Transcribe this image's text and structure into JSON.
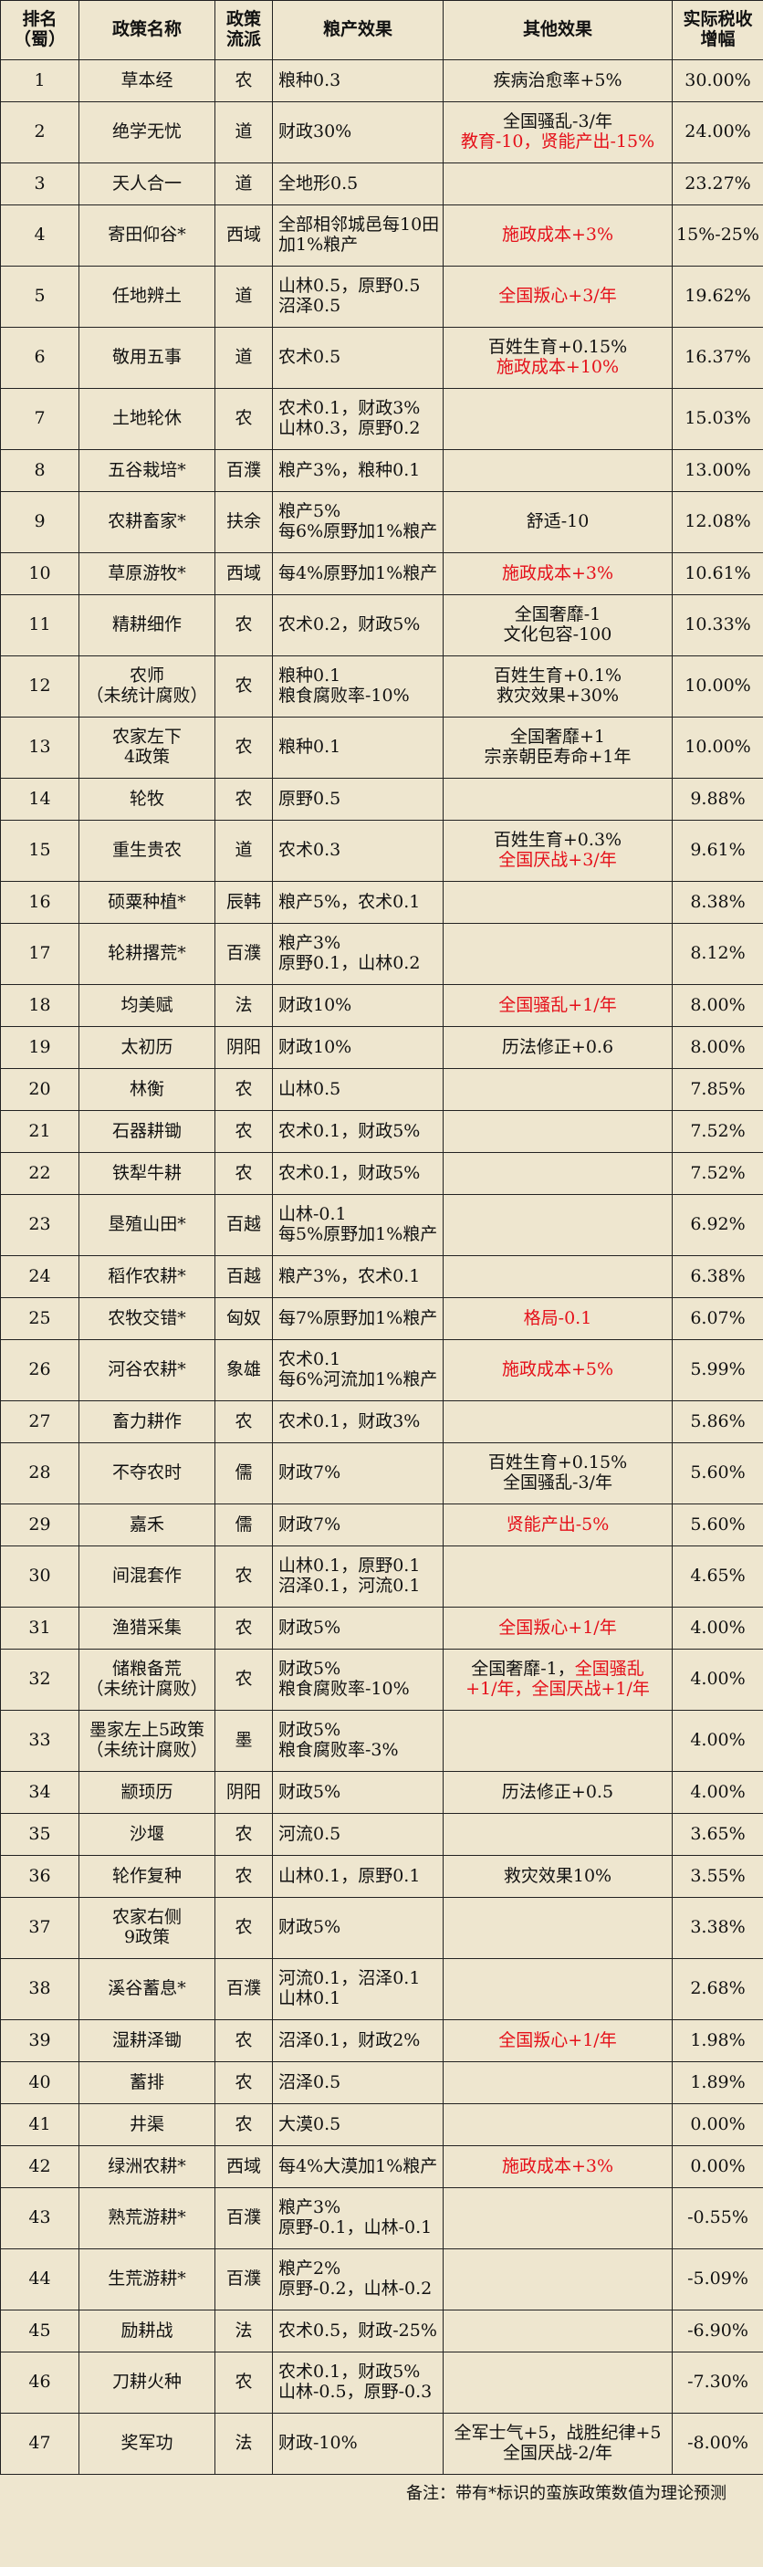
{
  "header": {
    "rank": [
      "排名",
      "（蜀）"
    ],
    "name": [
      "政策名称"
    ],
    "school": [
      "政策",
      "流派"
    ],
    "grain": [
      "粮产效果"
    ],
    "other": [
      "其他效果"
    ],
    "tax": [
      "实际税收",
      "增幅"
    ]
  },
  "rows": [
    {
      "rank": "1",
      "name": [
        "草本经"
      ],
      "school": "农",
      "grain": [
        "粮种0.3"
      ],
      "other": [
        [
          {
            "text": "疾病治愈率+5%"
          }
        ]
      ],
      "tax": "30.00%"
    },
    {
      "rank": "2",
      "name": [
        "绝学无忧"
      ],
      "school": "道",
      "grain": [
        "财政30%"
      ],
      "other": [
        [
          {
            "text": "全国骚乱-3/年"
          }
        ],
        [
          {
            "text": "教育-10，贤能产出-15%",
            "color": "#e5101a"
          }
        ]
      ],
      "tax": "24.00%"
    },
    {
      "rank": "3",
      "name": [
        "天人合一"
      ],
      "school": "道",
      "grain": [
        "全地形0.5"
      ],
      "other": [],
      "tax": "23.27%"
    },
    {
      "rank": "4",
      "name": [
        "寄田仰谷*"
      ],
      "school": "西域",
      "grain": [
        "全部相邻城邑每10田",
        "加1%粮产"
      ],
      "other": [
        [
          {
            "text": "施政成本+3%",
            "color": "#e5101a"
          }
        ]
      ],
      "tax": "15%-25%"
    },
    {
      "rank": "5",
      "name": [
        "任地辨土"
      ],
      "school": "道",
      "grain": [
        "山林0.5，原野0.5",
        "沼泽0.5"
      ],
      "other": [
        [
          {
            "text": "全国叛心+3/年",
            "color": "#e5101a"
          }
        ]
      ],
      "tax": "19.62%"
    },
    {
      "rank": "6",
      "name": [
        "敬用五事"
      ],
      "school": "道",
      "grain": [
        "农术0.5"
      ],
      "other": [
        [
          {
            "text": "百姓生育+0.15%"
          }
        ],
        [
          {
            "text": "施政成本+10%",
            "color": "#e5101a"
          }
        ]
      ],
      "tax": "16.37%"
    },
    {
      "rank": "7",
      "name": [
        "土地轮休"
      ],
      "school": "农",
      "grain": [
        "农术0.1，财政3%",
        "山林0.3，原野0.2"
      ],
      "other": [],
      "tax": "15.03%"
    },
    {
      "rank": "8",
      "name": [
        "五谷栽培*"
      ],
      "school": "百濮",
      "grain": [
        "粮产3%，粮种0.1"
      ],
      "other": [],
      "tax": "13.00%"
    },
    {
      "rank": "9",
      "name": [
        "农耕畜家*"
      ],
      "school": "扶余",
      "grain": [
        "粮产5%",
        "每6%原野加1%粮产"
      ],
      "other": [
        [
          {
            "text": "舒适-10"
          }
        ]
      ],
      "tax": "12.08%"
    },
    {
      "rank": "10",
      "name": [
        "草原游牧*"
      ],
      "school": "西域",
      "grain": [
        "每4%原野加1%粮产"
      ],
      "other": [
        [
          {
            "text": "施政成本+3%",
            "color": "#e5101a"
          }
        ]
      ],
      "tax": "10.61%"
    },
    {
      "rank": "11",
      "name": [
        "精耕细作"
      ],
      "school": "农",
      "grain": [
        "农术0.2，财政5%"
      ],
      "other": [
        [
          {
            "text": "全国奢靡-1"
          }
        ],
        [
          {
            "text": "文化包容-100"
          }
        ]
      ],
      "tax": "10.33%"
    },
    {
      "rank": "12",
      "name": [
        "农师",
        "（未统计腐败）"
      ],
      "school": "农",
      "grain": [
        "粮种0.1",
        "粮食腐败率-10%"
      ],
      "other": [
        [
          {
            "text": "百姓生育+0.1%"
          }
        ],
        [
          {
            "text": "救灾效果+30%"
          }
        ]
      ],
      "tax": "10.00%"
    },
    {
      "rank": "13",
      "name": [
        "农家左下",
        "4政策"
      ],
      "school": "农",
      "grain": [
        "粮种0.1"
      ],
      "other": [
        [
          {
            "text": "全国奢靡+1"
          }
        ],
        [
          {
            "text": "宗亲朝臣寿命+1年"
          }
        ]
      ],
      "tax": "10.00%"
    },
    {
      "rank": "14",
      "name": [
        "轮牧"
      ],
      "school": "农",
      "grain": [
        "原野0.5"
      ],
      "other": [],
      "tax": "9.88%"
    },
    {
      "rank": "15",
      "name": [
        "重生贵农"
      ],
      "school": "道",
      "grain": [
        "农术0.3"
      ],
      "other": [
        [
          {
            "text": "百姓生育+0.3%"
          }
        ],
        [
          {
            "text": "全国厌战+3/年",
            "color": "#e5101a"
          }
        ]
      ],
      "tax": "9.61%"
    },
    {
      "rank": "16",
      "name": [
        "硕粟种植*"
      ],
      "school": "辰韩",
      "grain": [
        "粮产5%，农术0.1"
      ],
      "other": [],
      "tax": "8.38%"
    },
    {
      "rank": "17",
      "name": [
        "轮耕撂荒*"
      ],
      "school": "百濮",
      "grain": [
        "粮产3%",
        "原野0.1，山林0.2"
      ],
      "other": [],
      "tax": "8.12%"
    },
    {
      "rank": "18",
      "name": [
        "均美赋"
      ],
      "school": "法",
      "grain": [
        "财政10%"
      ],
      "other": [
        [
          {
            "text": "全国骚乱+1/年",
            "color": "#e5101a"
          }
        ]
      ],
      "tax": "8.00%"
    },
    {
      "rank": "19",
      "name": [
        "太初历"
      ],
      "school": "阴阳",
      "grain": [
        "财政10%"
      ],
      "other": [
        [
          {
            "text": "历法修正+0.6"
          }
        ]
      ],
      "tax": "8.00%"
    },
    {
      "rank": "20",
      "name": [
        "林衡"
      ],
      "school": "农",
      "grain": [
        "山林0.5"
      ],
      "other": [],
      "tax": "7.85%"
    },
    {
      "rank": "21",
      "name": [
        "石器耕锄"
      ],
      "school": "农",
      "grain": [
        "农术0.1，财政5%"
      ],
      "other": [],
      "tax": "7.52%"
    },
    {
      "rank": "22",
      "name": [
        "铁犁牛耕"
      ],
      "school": "农",
      "grain": [
        "农术0.1，财政5%"
      ],
      "other": [],
      "tax": "7.52%"
    },
    {
      "rank": "23",
      "name": [
        "垦殖山田*"
      ],
      "school": "百越",
      "grain": [
        "山林-0.1",
        "每5%原野加1%粮产"
      ],
      "other": [],
      "tax": "6.92%"
    },
    {
      "rank": "24",
      "name": [
        "稻作农耕*"
      ],
      "school": "百越",
      "grain": [
        "粮产3%，农术0.1"
      ],
      "other": [],
      "tax": "6.38%"
    },
    {
      "rank": "25",
      "name": [
        "农牧交错*"
      ],
      "school": "匈奴",
      "grain": [
        "每7%原野加1%粮产"
      ],
      "other": [
        [
          {
            "text": "格局-0.1",
            "color": "#e5101a"
          }
        ]
      ],
      "tax": "6.07%"
    },
    {
      "rank": "26",
      "name": [
        "河谷农耕*"
      ],
      "school": "象雄",
      "grain": [
        "农术0.1",
        "每6%河流加1%粮产"
      ],
      "other": [
        [
          {
            "text": "施政成本+5%",
            "color": "#e5101a"
          }
        ]
      ],
      "tax": "5.99%"
    },
    {
      "rank": "27",
      "name": [
        "畜力耕作"
      ],
      "school": "农",
      "grain": [
        "农术0.1，财政3%"
      ],
      "other": [],
      "tax": "5.86%"
    },
    {
      "rank": "28",
      "name": [
        "不夺农时"
      ],
      "school": "儒",
      "grain": [
        "财政7%"
      ],
      "other": [
        [
          {
            "text": "百姓生育+0.15%"
          }
        ],
        [
          {
            "text": "全国骚乱-3/年"
          }
        ]
      ],
      "tax": "5.60%"
    },
    {
      "rank": "29",
      "name": [
        "嘉禾"
      ],
      "school": "儒",
      "grain": [
        "财政7%"
      ],
      "other": [
        [
          {
            "text": "贤能产出-5%",
            "color": "#e5101a"
          }
        ]
      ],
      "tax": "5.60%"
    },
    {
      "rank": "30",
      "name": [
        "间混套作"
      ],
      "school": "农",
      "grain": [
        "山林0.1，原野0.1",
        "沼泽0.1，河流0.1"
      ],
      "other": [],
      "tax": "4.65%"
    },
    {
      "rank": "31",
      "name": [
        "渔猎采集"
      ],
      "school": "农",
      "grain": [
        "财政5%"
      ],
      "other": [
        [
          {
            "text": "全国叛心+1/年",
            "color": "#e5101a"
          }
        ]
      ],
      "tax": "4.00%"
    },
    {
      "rank": "32",
      "name": [
        "储粮备荒",
        "（未统计腐败）"
      ],
      "school": "农",
      "grain": [
        "财政5%",
        "粮食腐败率-10%"
      ],
      "other": [
        [
          {
            "text": "全国奢靡-1，"
          },
          {
            "text": "全国骚乱",
            "color": "#e5101a"
          }
        ],
        [
          {
            "text": "+1/年，全国厌战+1/年",
            "color": "#e5101a"
          }
        ]
      ],
      "tax": "4.00%"
    },
    {
      "rank": "33",
      "name": [
        "墨家左上5政策",
        "（未统计腐败）"
      ],
      "school": "墨",
      "grain": [
        "财政5%",
        "粮食腐败率-3%"
      ],
      "other": [],
      "tax": "4.00%"
    },
    {
      "rank": "34",
      "name": [
        "颛顼历"
      ],
      "school": "阴阳",
      "grain": [
        "财政5%"
      ],
      "other": [
        [
          {
            "text": "历法修正+0.5"
          }
        ]
      ],
      "tax": "4.00%"
    },
    {
      "rank": "35",
      "name": [
        "沙堰"
      ],
      "school": "农",
      "grain": [
        "河流0.5"
      ],
      "other": [],
      "tax": "3.65%"
    },
    {
      "rank": "36",
      "name": [
        "轮作复种"
      ],
      "school": "农",
      "grain": [
        "山林0.1，原野0.1"
      ],
      "other": [
        [
          {
            "text": "救灾效果10%"
          }
        ]
      ],
      "tax": "3.55%"
    },
    {
      "rank": "37",
      "name": [
        "农家右侧",
        "9政策"
      ],
      "school": "农",
      "grain": [
        "财政5%"
      ],
      "other": [],
      "tax": "3.38%"
    },
    {
      "rank": "38",
      "name": [
        "溪谷蓄息*"
      ],
      "school": "百濮",
      "grain": [
        "河流0.1，沼泽0.1",
        "山林0.1"
      ],
      "other": [],
      "tax": "2.68%"
    },
    {
      "rank": "39",
      "name": [
        "湿耕泽锄"
      ],
      "school": "农",
      "grain": [
        "沼泽0.1，财政2%"
      ],
      "other": [
        [
          {
            "text": "全国叛心+1/年",
            "color": "#e5101a"
          }
        ]
      ],
      "tax": "1.98%"
    },
    {
      "rank": "40",
      "name": [
        "蓄排"
      ],
      "school": "农",
      "grain": [
        "沼泽0.5"
      ],
      "other": [],
      "tax": "1.89%"
    },
    {
      "rank": "41",
      "name": [
        "井渠"
      ],
      "school": "农",
      "grain": [
        "大漠0.5"
      ],
      "other": [],
      "tax": "0.00%"
    },
    {
      "rank": "42",
      "name": [
        "绿洲农耕*"
      ],
      "school": "西域",
      "grain": [
        "每4%大漠加1%粮产"
      ],
      "other": [
        [
          {
            "text": "施政成本+3%",
            "color": "#e5101a"
          }
        ]
      ],
      "tax": "0.00%"
    },
    {
      "rank": "43",
      "name": [
        "熟荒游耕*"
      ],
      "school": "百濮",
      "grain": [
        "粮产3%",
        "原野-0.1，山林-0.1"
      ],
      "other": [],
      "tax": "-0.55%"
    },
    {
      "rank": "44",
      "name": [
        "生荒游耕*"
      ],
      "school": "百濮",
      "grain": [
        "粮产2%",
        "原野-0.2，山林-0.2"
      ],
      "other": [],
      "tax": "-5.09%"
    },
    {
      "rank": "45",
      "name": [
        "励耕战"
      ],
      "school": "法",
      "grain": [
        "农术0.5，财政-25%"
      ],
      "other": [],
      "tax": "-6.90%"
    },
    {
      "rank": "46",
      "name": [
        "刀耕火种"
      ],
      "school": "农",
      "grain": [
        "农术0.1，财政5%",
        "山林-0.5，原野-0.3"
      ],
      "other": [],
      "tax": "-7.30%"
    },
    {
      "rank": "47",
      "name": [
        "奖军功"
      ],
      "school": "法",
      "grain": [
        "财政-10%"
      ],
      "other": [
        [
          {
            "text": "全军士气+5，战胜纪律+5"
          }
        ],
        [
          {
            "text": "全国厌战-2/年"
          }
        ]
      ],
      "tax": "-8.00%"
    }
  ],
  "footer": "备注：带有*标识的蛮族政策数值为理论预测"
}
